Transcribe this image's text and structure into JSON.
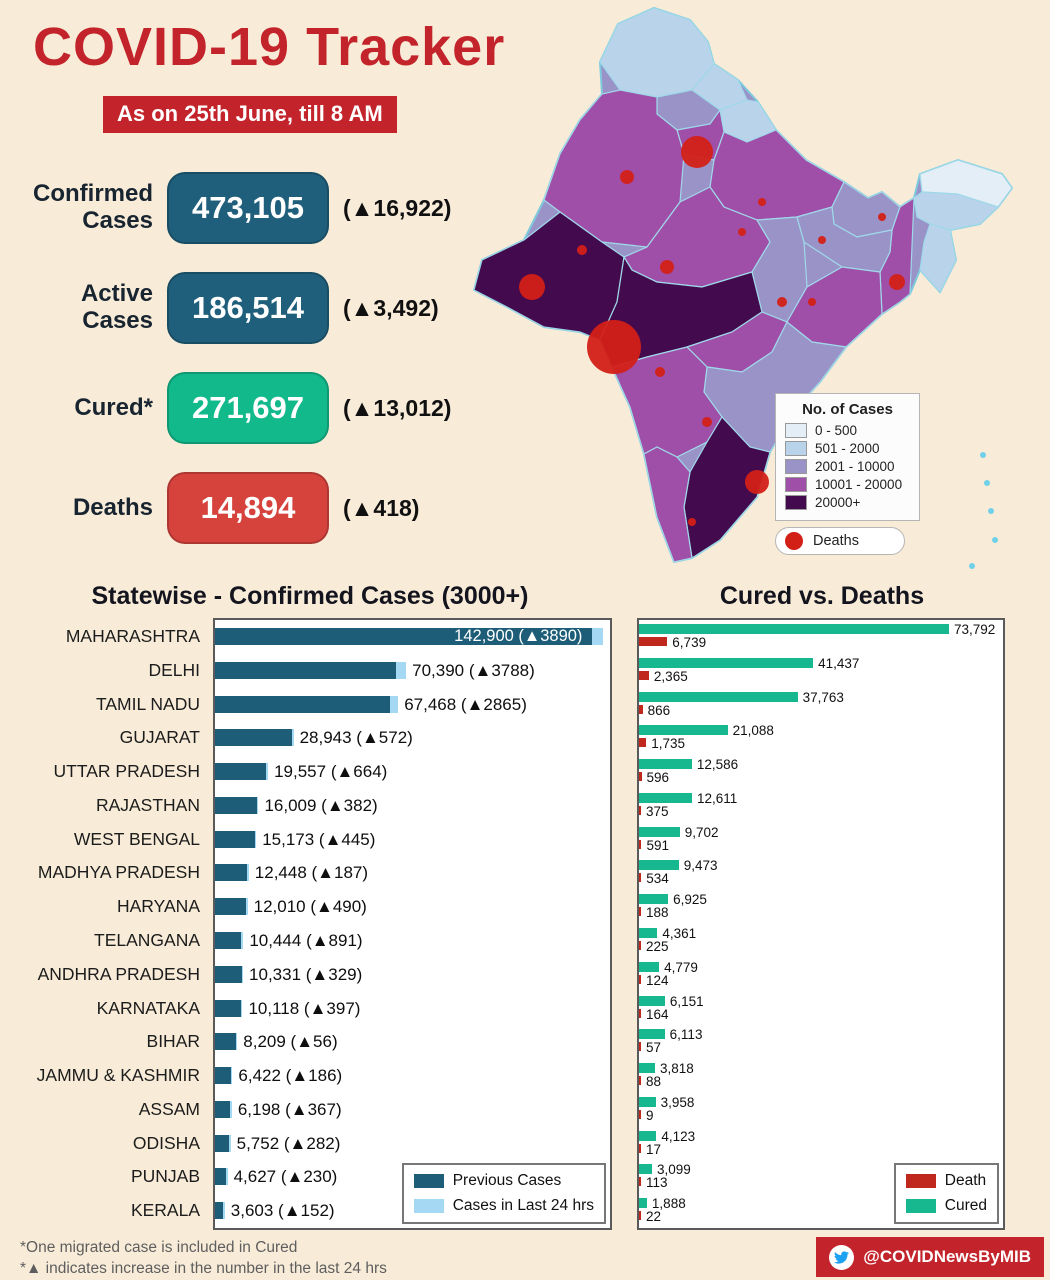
{
  "theme": {
    "background": "#f8ecd9",
    "accent_red": "#c3242b",
    "bar_dark": "#1d5d77",
    "bar_light": "#a5d9f3",
    "cured_green": "#17b890",
    "death_red": "#c0281e"
  },
  "header": {
    "title": "COVID-19 Tracker",
    "date_badge": "As on 25th June, till 8 AM"
  },
  "stats": [
    {
      "label": "Confirmed Cases",
      "value": "473,105",
      "delta": "(▲16,922)",
      "color": "#1f5f7b"
    },
    {
      "label": "Active Cases",
      "value": "186,514",
      "delta": "(▲3,492)",
      "color": "#1f5f7b"
    },
    {
      "label": "Cured*",
      "value": "271,697",
      "delta": "(▲13,012)",
      "color": "#12ba8b"
    },
    {
      "label": "Deaths",
      "value": "14,894",
      "delta": "(▲418)",
      "color": "#d5433c"
    }
  ],
  "map": {
    "legend_title": "No. of Cases",
    "legend": [
      {
        "label": "0 - 500",
        "color": "#e3eef7"
      },
      {
        "label": "501 - 2000",
        "color": "#b9d3ea"
      },
      {
        "label": "2001 - 10000",
        "color": "#9a93c8"
      },
      {
        "label": "10001 - 20000",
        "color": "#a04fa8"
      },
      {
        "label": "20000+",
        "color": "#440a4e"
      }
    ],
    "deaths_label": "Deaths",
    "deaths_color": "#d32017"
  },
  "chart_data": [
    {
      "type": "bar",
      "orientation": "horizontal",
      "title": "Statewise - Confirmed Cases (3000+)",
      "categories": [
        "MAHARASHTRA",
        "DELHI",
        "TAMIL NADU",
        "GUJARAT",
        "UTTAR PRADESH",
        "RAJASTHAN",
        "WEST BENGAL",
        "MADHYA PRADESH",
        "HARYANA",
        "TELANGANA",
        "ANDHRA PRADESH",
        "KARNATAKA",
        "BIHAR",
        "JAMMU & KASHMIR",
        "ASSAM",
        "ODISHA",
        "PUNJAB",
        "KERALA"
      ],
      "totals": [
        142900,
        70390,
        67468,
        28943,
        19557,
        16009,
        15173,
        12448,
        12010,
        10444,
        10331,
        10118,
        8209,
        6422,
        6198,
        5752,
        4627,
        3603
      ],
      "increase_24h": [
        3890,
        3788,
        2865,
        572,
        664,
        382,
        445,
        187,
        490,
        891,
        329,
        397,
        56,
        186,
        367,
        282,
        230,
        152
      ],
      "bar_labels": [
        "142,900 (▲3890)",
        "70,390 (▲3788)",
        "67,468 (▲2865)",
        "28,943 (▲572)",
        "19,557 (▲664)",
        "16,009 (▲382)",
        "15,173 (▲445)",
        "12,448 (▲187)",
        "12,010 (▲490)",
        "10,444 (▲891)",
        "10,331 (▲329)",
        "10,118 (▲397)",
        "8,209 (▲56)",
        "6,422 (▲186)",
        "6,198 (▲367)",
        "5,752 (▲282)",
        "4,627 (▲230)",
        "3,603 (▲152)"
      ],
      "legend": [
        {
          "label": "Previous Cases",
          "color": "#1d5d77"
        },
        {
          "label": "Cases in Last 24 hrs",
          "color": "#a5d9f3"
        }
      ],
      "xlim": [
        0,
        145000
      ]
    },
    {
      "type": "bar",
      "orientation": "horizontal",
      "title": "Cured vs. Deaths",
      "categories": [
        "MAHARASHTRA",
        "DELHI",
        "TAMIL NADU",
        "GUJARAT",
        "UTTAR PRADESH",
        "RAJASTHAN",
        "WEST BENGAL",
        "MADHYA PRADESH",
        "HARYANA",
        "TELANGANA",
        "ANDHRA PRADESH",
        "KARNATAKA",
        "BIHAR",
        "JAMMU & KASHMIR",
        "ASSAM",
        "ODISHA",
        "PUNJAB",
        "KERALA"
      ],
      "series": [
        {
          "name": "Death",
          "color": "#c0281e",
          "values": [
            6739,
            2365,
            866,
            1735,
            596,
            375,
            591,
            534,
            188,
            225,
            124,
            164,
            57,
            88,
            9,
            17,
            113,
            22
          ]
        },
        {
          "name": "Cured",
          "color": "#17b890",
          "values": [
            73792,
            41437,
            37763,
            21088,
            12586,
            12611,
            9702,
            9473,
            6925,
            4361,
            4779,
            6151,
            6113,
            3818,
            3958,
            4123,
            3099,
            1888
          ]
        }
      ],
      "value_labels": {
        "death": [
          "6,739",
          "2,365",
          "866",
          "1,735",
          "596",
          "375",
          "591",
          "534",
          "188",
          "225",
          "124",
          "164",
          "57",
          "88",
          "9",
          "17",
          "113",
          "22"
        ],
        "cured": [
          "73,792",
          "41,437",
          "37,763",
          "21,088",
          "12,586",
          "12,611",
          "9,702",
          "9,473",
          "6,925",
          "4,361",
          "4,779",
          "6,151",
          "6,113",
          "3,818",
          "3,958",
          "4,123",
          "3,099",
          "1,888"
        ]
      },
      "xlim": [
        0,
        76000
      ]
    }
  ],
  "footnotes": [
    "*One migrated case is included in Cured",
    "*▲ indicates increase in the number in the last 24 hrs"
  ],
  "footer": {
    "twitter_handle": "@COVIDNewsByMIB",
    "icon": "twitter-bird"
  }
}
